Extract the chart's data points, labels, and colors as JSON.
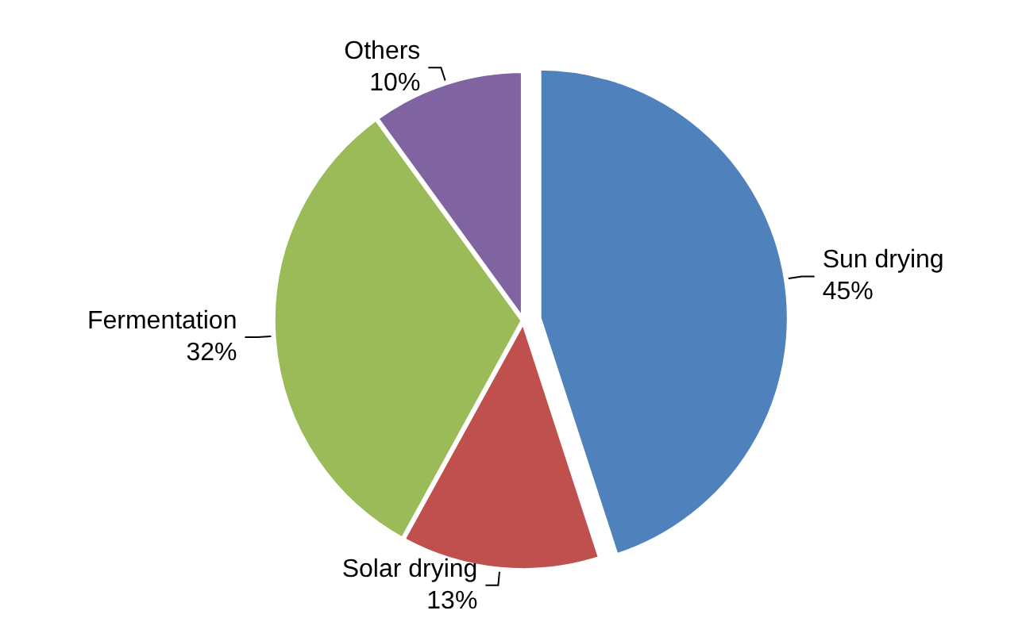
{
  "chart_data": {
    "type": "pie",
    "categories": [
      "Sun drying",
      "Solar drying",
      "Fermentation",
      "Others"
    ],
    "values": [
      45,
      13,
      32,
      10
    ],
    "colors": [
      "#4f81bd",
      "#c0504d",
      "#9bbb59",
      "#8064a2"
    ],
    "value_labels": [
      "45%",
      "13%",
      "32%",
      "10%"
    ]
  }
}
